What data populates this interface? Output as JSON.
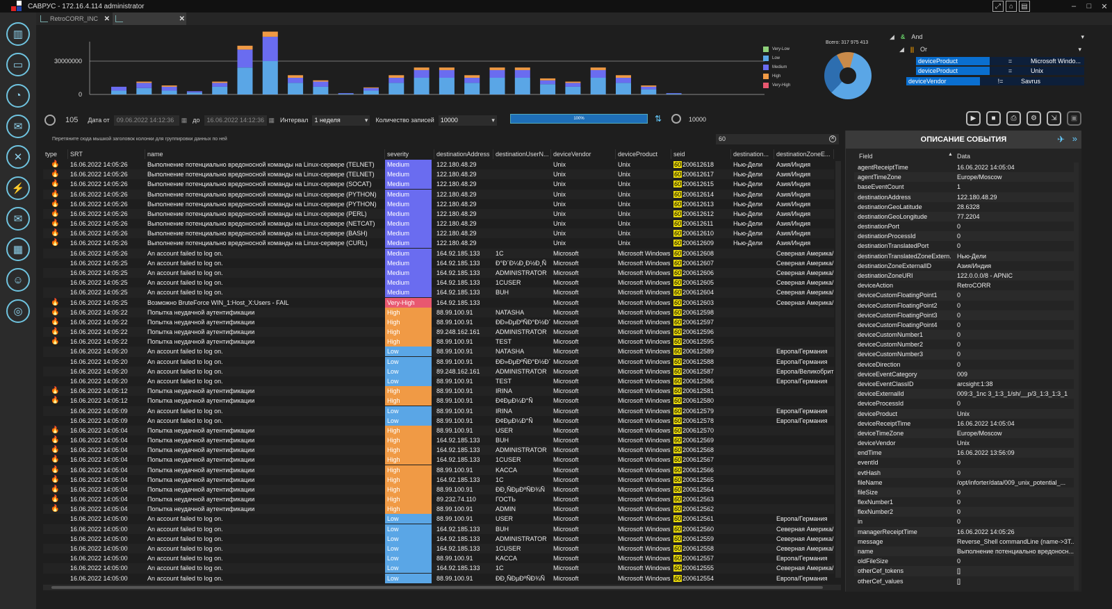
{
  "app": {
    "title": "САВРУС - 172.16.4.114 administrator"
  },
  "tabs": [
    {
      "label": "RetroCORR_INC"
    },
    {
      "label": ""
    }
  ],
  "nav": [
    "chart-icon",
    "monitor-icon",
    "pie-icon",
    "mail-stack-icon",
    "tools-icon",
    "lightning-icon",
    "envelope-icon",
    "calendar-icon",
    "user-icon",
    "globe-search-icon"
  ],
  "chart_data": {
    "type": "bar",
    "yticks": [
      "30000000",
      "0"
    ],
    "series_names": [
      "Very-Low",
      "Low",
      "Medium",
      "High",
      "Very-High"
    ],
    "colors": [
      "#8fd17a",
      "#5aa6e6",
      "#6a6cf0",
      "#f09a45",
      "#e85870"
    ],
    "stacks": [
      [
        0,
        0.3,
        0.3,
        0,
        0
      ],
      [
        0,
        0.5,
        0.4,
        0.1,
        0
      ],
      [
        0,
        0.3,
        0.3,
        0.1,
        0
      ],
      [
        0,
        0.15,
        0.1,
        0,
        0
      ],
      [
        0,
        0.6,
        0.3,
        0.1,
        0
      ],
      [
        0,
        2.1,
        1.4,
        0.3,
        0
      ],
      [
        0,
        2.6,
        1.9,
        0.4,
        0
      ],
      [
        0,
        0.9,
        0.4,
        0.2,
        0
      ],
      [
        0,
        0.6,
        0.4,
        0.1,
        0
      ],
      [
        0,
        0.05,
        0.05,
        0,
        0
      ],
      [
        0,
        0.3,
        0.2,
        0.05,
        0
      ],
      [
        0,
        0.9,
        0.4,
        0.2,
        0
      ],
      [
        0,
        1.3,
        0.6,
        0.2,
        0
      ],
      [
        0,
        1.3,
        0.6,
        0.2,
        0
      ],
      [
        0,
        0.9,
        0.4,
        0.2,
        0
      ],
      [
        0,
        1.3,
        0.6,
        0.2,
        0
      ],
      [
        0,
        1.3,
        0.6,
        0.2,
        0
      ],
      [
        0,
        0.8,
        0.3,
        0.15,
        0
      ],
      [
        0,
        0.6,
        0.3,
        0.1,
        0
      ],
      [
        0,
        1.3,
        0.6,
        0.2,
        0
      ],
      [
        0,
        0.9,
        0.4,
        0.2,
        0
      ],
      [
        0,
        0.4,
        0.2,
        0.1,
        0
      ],
      [
        0,
        0.05,
        0.05,
        0,
        0
      ]
    ]
  },
  "pie": {
    "total_label": "Всего: 317 975 413",
    "slices": [
      {
        "name": "Low",
        "value": 0.58
      },
      {
        "name": "Medium",
        "value": 0.3
      },
      {
        "name": "High",
        "value": 0.12
      }
    ]
  },
  "filter": {
    "and": "And",
    "or": "Or",
    "conds": [
      {
        "field": "deviceProduct",
        "op": "=",
        "value": "Microsoft Windo..."
      },
      {
        "field": "deviceProduct",
        "op": "=",
        "value": "Unix"
      },
      {
        "field": "deviceVendor",
        "op": "!=",
        "value": "Savrus"
      }
    ]
  },
  "toolbar": {
    "refresh_val": "105",
    "date_from_label": "Дата от",
    "date_from": "09.06.2022 14:12:36",
    "to_label": "до",
    "date_to": "16.06.2022 14:12:36",
    "interval_label": "Интервал",
    "interval": "1 неделя",
    "count_label": "Количество записей",
    "count": "10000",
    "progress": "100%",
    "limit": "10000"
  },
  "grid": {
    "group_hint": "Перетяните сюда мышкой заголовок колонки для группировки данных по ней",
    "search": "60",
    "columns": [
      "type",
      "SRT",
      "name",
      "severity",
      "destinationAddress",
      "destinationUserN...",
      "deviceVendor",
      "deviceProduct",
      "seid",
      "destination...",
      "destinationZoneE..."
    ],
    "rows": [
      [
        "f",
        "16.06.2022 14:05:26",
        "Выполнение потенциально вредоносной команды на Linux-сервере (TELNET)",
        "Medium",
        "122.180.48.29",
        "",
        "Unix",
        "Unix",
        "200612618",
        "Нью-Дели",
        "Азия/Индия"
      ],
      [
        "f",
        "16.06.2022 14:05:26",
        "Выполнение потенциально вредоносной команды на Linux-сервере (TELNET)",
        "Medium",
        "122.180.48.29",
        "",
        "Unix",
        "Unix",
        "200612617",
        "Нью-Дели",
        "Азия/Индия"
      ],
      [
        "f",
        "16.06.2022 14:05:26",
        "Выполнение потенциально вредоносной команды на Linux-сервере (SOCAT)",
        "Medium",
        "122.180.48.29",
        "",
        "Unix",
        "Unix",
        "200612615",
        "Нью-Дели",
        "Азия/Индия"
      ],
      [
        "f",
        "16.06.2022 14:05:26",
        "Выполнение потенциально вредоносной команды на Linux-сервере (PYTHON)",
        "Medium",
        "122.180.48.29",
        "",
        "Unix",
        "Unix",
        "200612614",
        "Нью-Дели",
        "Азия/Индия"
      ],
      [
        "f",
        "16.06.2022 14:05:26",
        "Выполнение потенциально вредоносной команды на Linux-сервере (PYTHON)",
        "Medium",
        "122.180.48.29",
        "",
        "Unix",
        "Unix",
        "200612613",
        "Нью-Дели",
        "Азия/Индия"
      ],
      [
        "f",
        "16.06.2022 14:05:26",
        "Выполнение потенциально вредоносной команды на Linux-сервере (PERL)",
        "Medium",
        "122.180.48.29",
        "",
        "Unix",
        "Unix",
        "200612612",
        "Нью-Дели",
        "Азия/Индия"
      ],
      [
        "f",
        "16.06.2022 14:05:26",
        "Выполнение потенциально вредоносной команды на Linux-сервере (NETCAT)",
        "Medium",
        "122.180.48.29",
        "",
        "Unix",
        "Unix",
        "200612611",
        "Нью-Дели",
        "Азия/Индия"
      ],
      [
        "f",
        "16.06.2022 14:05:26",
        "Выполнение потенциально вредоносной команды на Linux-сервере (BASH)",
        "Medium",
        "122.180.48.29",
        "",
        "Unix",
        "Unix",
        "200612610",
        "Нью-Дели",
        "Азия/Индия"
      ],
      [
        "f",
        "16.06.2022 14:05:26",
        "Выполнение потенциально вредоносной команды на Linux-сервере (CURL)",
        "Medium",
        "122.180.48.29",
        "",
        "Unix",
        "Unix",
        "200612609",
        "Нью-Дели",
        "Азия/Индия"
      ],
      [
        "",
        "16.06.2022 14:05:26",
        "An account failed to log on.",
        "Medium",
        "164.92.185.133",
        "1C",
        "Microsoft",
        "Microsoft Windows",
        "200612608",
        "",
        "Северная Америка/"
      ],
      [
        "",
        "16.06.2022 14:05:25",
        "An account failed to log on.",
        "Medium",
        "164.92.185.133",
        "Ð°Ð´Ð¼Ð¸Ð½Ð¸Ñ",
        "Microsoft",
        "Microsoft Windows",
        "200612607",
        "",
        "Северная Америка/"
      ],
      [
        "",
        "16.06.2022 14:05:25",
        "An account failed to log on.",
        "Medium",
        "164.92.185.133",
        "ADMINISTRATOR",
        "Microsoft",
        "Microsoft Windows",
        "200612606",
        "",
        "Северная Америка/"
      ],
      [
        "",
        "16.06.2022 14:05:25",
        "An account failed to log on.",
        "Medium",
        "164.92.185.133",
        "1CUSER",
        "Microsoft",
        "Microsoft Windows",
        "200612605",
        "",
        "Северная Америка/"
      ],
      [
        "",
        "16.06.2022 14:05:25",
        "An account failed to log on.",
        "Medium",
        "164.92.185.133",
        "BUH",
        "Microsoft",
        "Microsoft Windows",
        "200612604",
        "",
        "Северная Америка/"
      ],
      [
        "f",
        "16.06.2022 14:05:25",
        "Возможно BruteForce WIN_1:Host_X:Users - FAIL",
        "Very-High",
        "164.92.185.133",
        "",
        "Microsoft",
        "Microsoft Windows",
        "200612603",
        "",
        "Северная Америка/"
      ],
      [
        "f",
        "16.06.2022 14:05:22",
        "Попытка неудачной аутентификации",
        "High",
        "88.99.100.91",
        "NATASHA",
        "Microsoft",
        "Microsoft Windows",
        "200612598",
        "",
        ""
      ],
      [
        "f",
        "16.06.2022 14:05:22",
        "Попытка неудачной аутентификации",
        "High",
        "88.99.100.91",
        "ÐÐ»ÐµÐºÑÐ°Ð½Ð´Ñ",
        "Microsoft",
        "Microsoft Windows",
        "200612597",
        "",
        ""
      ],
      [
        "f",
        "16.06.2022 14:05:22",
        "Попытка неудачной аутентификации",
        "High",
        "89.248.162.161",
        "ADMINISTRATOR",
        "Microsoft",
        "Microsoft Windows",
        "200612596",
        "",
        ""
      ],
      [
        "f",
        "16.06.2022 14:05:22",
        "Попытка неудачной аутентификации",
        "High",
        "88.99.100.91",
        "TEST",
        "Microsoft",
        "Microsoft Windows",
        "200612595",
        "",
        ""
      ],
      [
        "",
        "16.06.2022 14:05:20",
        "An account failed to log on.",
        "Low",
        "88.99.100.91",
        "NATASHA",
        "Microsoft",
        "Microsoft Windows",
        "200612589",
        "",
        "Европа/Германия"
      ],
      [
        "",
        "16.06.2022 14:05:20",
        "An account failed to log on.",
        "Low",
        "88.99.100.91",
        "ÐÐ»ÐµÐºÑÐ°Ð½Ð´Ñ",
        "Microsoft",
        "Microsoft Windows",
        "200612588",
        "",
        "Европа/Германия"
      ],
      [
        "",
        "16.06.2022 14:05:20",
        "An account failed to log on.",
        "Low",
        "89.248.162.161",
        "ADMINISTRATOR",
        "Microsoft",
        "Microsoft Windows",
        "200612587",
        "",
        "Европа/Великобрит"
      ],
      [
        "",
        "16.06.2022 14:05:20",
        "An account failed to log on.",
        "Low",
        "88.99.100.91",
        "TEST",
        "Microsoft",
        "Microsoft Windows",
        "200612586",
        "",
        "Европа/Германия"
      ],
      [
        "f",
        "16.06.2022 14:05:12",
        "Попытка неудачной аутентификации",
        "High",
        "88.99.100.91",
        "IRINA",
        "Microsoft",
        "Microsoft Windows",
        "200612581",
        "",
        ""
      ],
      [
        "f",
        "16.06.2022 14:05:12",
        "Попытка неудачной аутентификации",
        "High",
        "88.99.100.91",
        "Ð¢ÐµÐ¼Ð°Ñ",
        "Microsoft",
        "Microsoft Windows",
        "200612580",
        "",
        ""
      ],
      [
        "",
        "16.06.2022 14:05:09",
        "An account failed to log on.",
        "Low",
        "88.99.100.91",
        "IRINA",
        "Microsoft",
        "Microsoft Windows",
        "200612579",
        "",
        "Европа/Германия"
      ],
      [
        "",
        "16.06.2022 14:05:09",
        "An account failed to log on.",
        "Low",
        "88.99.100.91",
        "Ð¢ÐµÐ¼Ð°Ñ",
        "Microsoft",
        "Microsoft Windows",
        "200612578",
        "",
        "Европа/Германия"
      ],
      [
        "f",
        "16.06.2022 14:05:04",
        "Попытка неудачной аутентификации",
        "High",
        "88.99.100.91",
        "USER",
        "Microsoft",
        "Microsoft Windows",
        "200612570",
        "",
        ""
      ],
      [
        "f",
        "16.06.2022 14:05:04",
        "Попытка неудачной аутентификации",
        "High",
        "164.92.185.133",
        "BUH",
        "Microsoft",
        "Microsoft Windows",
        "200612569",
        "",
        ""
      ],
      [
        "f",
        "16.06.2022 14:05:04",
        "Попытка неудачной аутентификации",
        "High",
        "164.92.185.133",
        "ADMINISTRATOR",
        "Microsoft",
        "Microsoft Windows",
        "200612568",
        "",
        ""
      ],
      [
        "f",
        "16.06.2022 14:05:04",
        "Попытка неудачной аутентификации",
        "High",
        "164.92.185.133",
        "1CUSER",
        "Microsoft",
        "Microsoft Windows",
        "200612567",
        "",
        ""
      ],
      [
        "f",
        "16.06.2022 14:05:04",
        "Попытка неудачной аутентификации",
        "High",
        "88.99.100.91",
        "KACCA",
        "Microsoft",
        "Microsoft Windows",
        "200612566",
        "",
        ""
      ],
      [
        "f",
        "16.06.2022 14:05:04",
        "Попытка неудачной аутентификации",
        "High",
        "164.92.185.133",
        "1C",
        "Microsoft",
        "Microsoft Windows",
        "200612565",
        "",
        ""
      ],
      [
        "f",
        "16.06.2022 14:05:04",
        "Попытка неудачной аутентификации",
        "High",
        "88.99.100.91",
        "ÐÐ¸ÑÐµÐºÑÐ¾Ñ",
        "Microsoft",
        "Microsoft Windows",
        "200612564",
        "",
        ""
      ],
      [
        "f",
        "16.06.2022 14:05:04",
        "Попытка неудачной аутентификации",
        "High",
        "89.232.74.110",
        "ГОСТЬ",
        "Microsoft",
        "Microsoft Windows",
        "200612563",
        "",
        ""
      ],
      [
        "f",
        "16.06.2022 14:05:04",
        "Попытка неудачной аутентификации",
        "High",
        "88.99.100.91",
        "ADMIN",
        "Microsoft",
        "Microsoft Windows",
        "200612562",
        "",
        ""
      ],
      [
        "",
        "16.06.2022 14:05:00",
        "An account failed to log on.",
        "Low",
        "88.99.100.91",
        "USER",
        "Microsoft",
        "Microsoft Windows",
        "200612561",
        "",
        "Европа/Германия"
      ],
      [
        "",
        "16.06.2022 14:05:00",
        "An account failed to log on.",
        "Low",
        "164.92.185.133",
        "BUH",
        "Microsoft",
        "Microsoft Windows",
        "200612560",
        "",
        "Северная Америка/"
      ],
      [
        "",
        "16.06.2022 14:05:00",
        "An account failed to log on.",
        "Low",
        "164.92.185.133",
        "ADMINISTRATOR",
        "Microsoft",
        "Microsoft Windows",
        "200612559",
        "",
        "Северная Америка/"
      ],
      [
        "",
        "16.06.2022 14:05:00",
        "An account failed to log on.",
        "Low",
        "164.92.185.133",
        "1CUSER",
        "Microsoft",
        "Microsoft Windows",
        "200612558",
        "",
        "Северная Америка/"
      ],
      [
        "",
        "16.06.2022 14:05:00",
        "An account failed to log on.",
        "Low",
        "88.99.100.91",
        "KACCA",
        "Microsoft",
        "Microsoft Windows",
        "200612557",
        "",
        "Европа/Германия"
      ],
      [
        "",
        "16.06.2022 14:05:00",
        "An account failed to log on.",
        "Low",
        "164.92.185.133",
        "1C",
        "Microsoft",
        "Microsoft Windows",
        "200612555",
        "",
        "Северная Америка/"
      ],
      [
        "",
        "16.06.2022 14:05:00",
        "An account failed to log on.",
        "Low",
        "88.99.100.91",
        "ÐÐ¸ÑÐµÐºÑÐ¾Ñ",
        "Microsoft",
        "Microsoft Windows",
        "200612554",
        "",
        "Европа/Германия"
      ]
    ]
  },
  "panel": {
    "title": "ОПИСАНИЕ СОБЫТИЯ",
    "field_header": "Field",
    "data_header": "Data",
    "fields": [
      [
        "agentReceiptTime",
        "16.06.2022 14:05:04"
      ],
      [
        "agentTimeZone",
        "Europe/Moscow"
      ],
      [
        "baseEventCount",
        "1"
      ],
      [
        "destinationAddress",
        "122.180.48.29"
      ],
      [
        "destinationGeoLatitude",
        "28.6328"
      ],
      [
        "destinationGeoLongitude",
        "77.2204"
      ],
      [
        "destinationPort",
        "0"
      ],
      [
        "destinationProcessId",
        "0"
      ],
      [
        "destinationTranslatedPort",
        "0"
      ],
      [
        "destinationTranslatedZoneExtern...",
        "Нью-Дели"
      ],
      [
        "destinationZoneExternalID",
        "Азия/Индия"
      ],
      [
        "destinationZoneURI",
        "122.0.0.0/8 - APNIC"
      ],
      [
        "deviceAction",
        "RetroCORR"
      ],
      [
        "deviceCustomFloatingPoint1",
        "0"
      ],
      [
        "deviceCustomFloatingPoint2",
        "0"
      ],
      [
        "deviceCustomFloatingPoint3",
        "0"
      ],
      [
        "deviceCustomFloatingPoint4",
        "0"
      ],
      [
        "deviceCustomNumber1",
        "0"
      ],
      [
        "deviceCustomNumber2",
        "0"
      ],
      [
        "deviceCustomNumber3",
        "0"
      ],
      [
        "deviceDirection",
        "0"
      ],
      [
        "deviceEventCategory",
        "009"
      ],
      [
        "deviceEventClassID",
        "arcsight:1:38"
      ],
      [
        "deviceExternalId",
        "009:3_1nc 3_1:3_1/sh/__p/3_1:3_1:3_1"
      ],
      [
        "deviceProcessId",
        "0"
      ],
      [
        "deviceProduct",
        "Unix"
      ],
      [
        "deviceReceiptTime",
        "16.06.2022 14:05:04"
      ],
      [
        "deviceTimeZone",
        "Europe/Moscow"
      ],
      [
        "deviceVendor",
        "Unix"
      ],
      [
        "endTime",
        "16.06.2022 13:56:09"
      ],
      [
        "eventId",
        "0"
      ],
      [
        "evtHash",
        "0"
      ],
      [
        "fileName",
        "/opt/inforter/data/009_unix_potential_..."
      ],
      [
        "fileSize",
        "0"
      ],
      [
        "flexNumber1",
        "0"
      ],
      [
        "flexNumber2",
        "0"
      ],
      [
        "in",
        "0"
      ],
      [
        "managerReceiptTime",
        "16.06.2022 14:05:26"
      ],
      [
        "message",
        "Reverse_Shell commandLine (name->3T..."
      ],
      [
        "name",
        "Выполнение потенциально вредоносн..."
      ],
      [
        "oldFileSize",
        "0"
      ],
      [
        "otherCef_tokens",
        "[]"
      ],
      [
        "otherCef_values",
        "[]"
      ]
    ]
  }
}
